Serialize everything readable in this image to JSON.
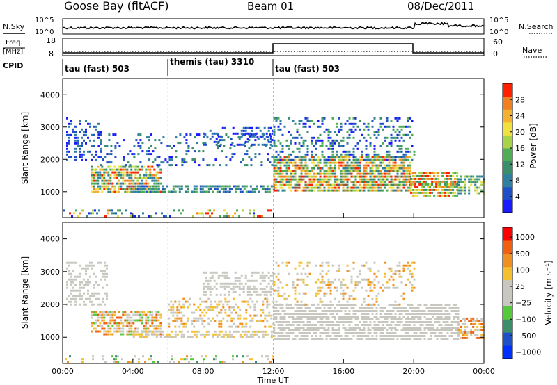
{
  "header": {
    "station": "Goose Bay (fitACF)",
    "beam": "Beam 01",
    "date": "08/Dec/2011"
  },
  "panels": {
    "nsky_label": "N.Sky",
    "nsky_ticks": [
      "10^5",
      "10^0"
    ],
    "nsearch_label": "N.Search",
    "nsearch_ticks": [
      "10^5",
      "10^0"
    ],
    "freq_label": "Freq.",
    "freq_unit": "[MHz]",
    "freq_ticks": [
      "18",
      "8"
    ],
    "nave_label": "Nave",
    "nave_ticks": [
      "60",
      "0"
    ],
    "cpid_label": "CPID",
    "cpid_segments": [
      {
        "name": "tau (fast) 503",
        "start_hour": 0
      },
      {
        "name": "themis (tau) 3310",
        "start_hour": 6
      },
      {
        "name": "tau (fast) 503",
        "start_hour": 12
      }
    ]
  },
  "colors": {
    "power_scale": [
      "#1a1aff",
      "#1e50c8",
      "#2e7fa0",
      "#3a8f6a",
      "#4fae55",
      "#a8d24a",
      "#f0e040",
      "#f4b030",
      "#f08020",
      "#ff2000"
    ],
    "velocity_scale": [
      "#0030ff",
      "#1e50c8",
      "#3a8f6a",
      "#56c83c",
      "#c8c8c0",
      "#c8c8c0",
      "#f4c030",
      "#f09020",
      "#f06010",
      "#ff0000"
    ],
    "ground_gray": "#c8c8c0"
  },
  "chart_data": [
    {
      "type": "heatmap",
      "name": "power",
      "ylabel": "Slant Range [km]",
      "ylim": [
        200,
        4500
      ],
      "yticks": [
        "1000",
        "2000",
        "3000",
        "4000"
      ],
      "colorbar_label": "Power [dB]",
      "colorbar_ticks": [
        "4",
        "8",
        "12",
        "16",
        "20",
        "24",
        "28"
      ],
      "bands": [
        {
          "t0": 0.2,
          "t1": 2.2,
          "r0": 2000,
          "r1": 3300,
          "density": 0.35,
          "level": [
            0,
            2
          ]
        },
        {
          "t0": 1.6,
          "t1": 5.6,
          "r0": 1000,
          "r1": 1800,
          "density": 0.75,
          "level": [
            2,
            9
          ]
        },
        {
          "t0": 4.0,
          "t1": 12.0,
          "r0": 1000,
          "r1": 1200,
          "density": 0.7,
          "level": [
            1,
            4
          ]
        },
        {
          "t0": 2.0,
          "t1": 12.0,
          "r0": 1800,
          "r1": 2800,
          "density": 0.2,
          "level": [
            0,
            3
          ]
        },
        {
          "t0": 8.0,
          "t1": 12.0,
          "r0": 2400,
          "r1": 3000,
          "density": 0.3,
          "level": [
            0,
            2
          ]
        },
        {
          "t0": 12.0,
          "t1": 19.8,
          "r0": 1000,
          "r1": 2100,
          "density": 0.8,
          "level": [
            2,
            9
          ]
        },
        {
          "t0": 12.0,
          "t1": 20.0,
          "r0": 2000,
          "r1": 3300,
          "density": 0.3,
          "level": [
            0,
            4
          ]
        },
        {
          "t0": 19.8,
          "t1": 22.5,
          "r0": 900,
          "r1": 1600,
          "density": 0.8,
          "level": [
            3,
            9
          ]
        },
        {
          "t0": 22.5,
          "t1": 24.0,
          "r0": 900,
          "r1": 1500,
          "density": 0.6,
          "level": [
            2,
            6
          ]
        },
        {
          "t0": 0.0,
          "t1": 12.0,
          "r0": 200,
          "r1": 450,
          "density": 0.25,
          "level": [
            0,
            9
          ]
        }
      ]
    },
    {
      "type": "heatmap",
      "name": "velocity",
      "ylabel": "Slant Range [km]",
      "ylim": [
        200,
        4500
      ],
      "yticks": [
        "1000",
        "2000",
        "3000",
        "4000"
      ],
      "xlabel": "Time UT",
      "xticks": [
        "00:00",
        "04:00",
        "08:00",
        "12:00",
        "16:00",
        "20:00",
        "00:00"
      ],
      "xlim": [
        0,
        24
      ],
      "colorbar_label": "Velocity [m s⁻¹]",
      "colorbar_ticks": [
        "1000",
        "500",
        "100",
        "25",
        "−25",
        "−100",
        "−500",
        "−1000"
      ],
      "bands": [
        {
          "t0": 0.2,
          "t1": 2.5,
          "r0": 2000,
          "r1": 3300,
          "density": 0.45,
          "level": [
            4,
            5
          ]
        },
        {
          "t0": 1.6,
          "t1": 5.6,
          "r0": 1100,
          "r1": 1800,
          "density": 0.7,
          "level": [
            3,
            8
          ]
        },
        {
          "t0": 4.0,
          "t1": 12.0,
          "r0": 1000,
          "r1": 1200,
          "density": 0.6,
          "level": [
            4,
            6
          ]
        },
        {
          "t0": 6.0,
          "t1": 12.0,
          "r0": 1300,
          "r1": 2200,
          "density": 0.35,
          "level": [
            4,
            7
          ]
        },
        {
          "t0": 8.0,
          "t1": 12.0,
          "r0": 2300,
          "r1": 3000,
          "density": 0.5,
          "level": [
            4,
            5
          ]
        },
        {
          "t0": 12.0,
          "t1": 22.5,
          "r0": 900,
          "r1": 2000,
          "density": 0.75,
          "level": [
            4,
            5
          ]
        },
        {
          "t0": 12.0,
          "t1": 20.0,
          "r0": 2000,
          "r1": 3300,
          "density": 0.25,
          "level": [
            4,
            7
          ]
        },
        {
          "t0": 22.5,
          "t1": 24.0,
          "r0": 1000,
          "r1": 1600,
          "density": 0.6,
          "level": [
            4,
            8
          ]
        },
        {
          "t0": 0.0,
          "t1": 12.0,
          "r0": 200,
          "r1": 450,
          "density": 0.25,
          "level": [
            2,
            7
          ]
        }
      ]
    }
  ]
}
